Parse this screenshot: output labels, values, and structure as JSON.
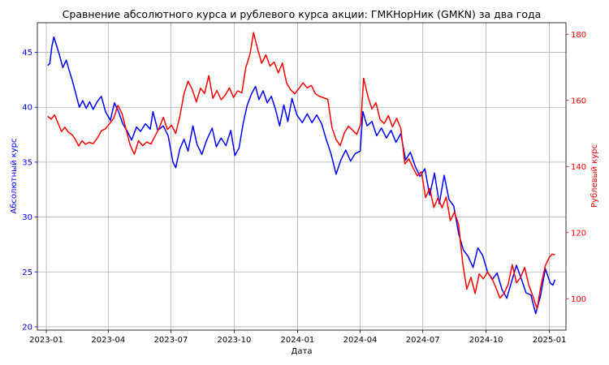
{
  "chart_data": {
    "type": "line",
    "title": "Сравнение абсолютного курса и рублевого курса акции: ГМКНорНик (GMKN) за два года",
    "xlabel": "Дата",
    "ylabel_left": "Абсолютный курс",
    "ylabel_right": "Рублевый курс",
    "x_ticks": [
      "2023-01",
      "2023-04",
      "2023-07",
      "2023-10",
      "2024-01",
      "2024-04",
      "2024-07",
      "2024-10",
      "2025-01"
    ],
    "x_range": [
      "2022-12-19",
      "2025-01-25"
    ],
    "y_left": {
      "range": [
        19.7,
        47.7
      ],
      "ticks": [
        20,
        25,
        30,
        35,
        40,
        45
      ]
    },
    "y_right": {
      "range": [
        90.5,
        183.5
      ],
      "ticks": [
        100,
        120,
        140,
        160,
        180
      ]
    },
    "grid": true,
    "colors": {
      "left_series": "#0000ff",
      "right_series": "#ff0000"
    },
    "series": [
      {
        "axis": "left",
        "color": "#0000ff",
        "points": [
          [
            "2023-01-03",
            43.8
          ],
          [
            "2023-01-06",
            44.0
          ],
          [
            "2023-01-09",
            45.5
          ],
          [
            "2023-01-12",
            46.4
          ],
          [
            "2023-01-16",
            45.6
          ],
          [
            "2023-01-20",
            44.8
          ],
          [
            "2023-01-25",
            43.6
          ],
          [
            "2023-01-30",
            44.3
          ],
          [
            "2023-02-03",
            43.4
          ],
          [
            "2023-02-08",
            42.4
          ],
          [
            "2023-02-13",
            41.2
          ],
          [
            "2023-02-18",
            40.0
          ],
          [
            "2023-02-23",
            40.6
          ],
          [
            "2023-02-28",
            39.9
          ],
          [
            "2023-03-05",
            40.5
          ],
          [
            "2023-03-10",
            39.8
          ],
          [
            "2023-03-16",
            40.5
          ],
          [
            "2023-03-22",
            41.0
          ],
          [
            "2023-03-28",
            39.6
          ],
          [
            "2023-04-04",
            38.8
          ],
          [
            "2023-04-10",
            40.4
          ],
          [
            "2023-04-16",
            39.6
          ],
          [
            "2023-04-22",
            38.5
          ],
          [
            "2023-04-28",
            37.9
          ],
          [
            "2023-05-05",
            37.0
          ],
          [
            "2023-05-12",
            38.2
          ],
          [
            "2023-05-18",
            37.8
          ],
          [
            "2023-05-25",
            38.5
          ],
          [
            "2023-06-01",
            38.0
          ],
          [
            "2023-06-05",
            39.6
          ],
          [
            "2023-06-12",
            37.9
          ],
          [
            "2023-06-20",
            38.3
          ],
          [
            "2023-06-27",
            37.4
          ],
          [
            "2023-07-04",
            35.0
          ],
          [
            "2023-07-08",
            34.5
          ],
          [
            "2023-07-14",
            36.2
          ],
          [
            "2023-07-20",
            37.1
          ],
          [
            "2023-07-26",
            36.0
          ],
          [
            "2023-08-02",
            38.3
          ],
          [
            "2023-08-08",
            36.6
          ],
          [
            "2023-08-15",
            35.7
          ],
          [
            "2023-08-22",
            37.0
          ],
          [
            "2023-08-30",
            38.1
          ],
          [
            "2023-09-05",
            36.4
          ],
          [
            "2023-09-12",
            37.2
          ],
          [
            "2023-09-19",
            36.5
          ],
          [
            "2023-09-26",
            37.9
          ],
          [
            "2023-10-02",
            35.6
          ],
          [
            "2023-10-08",
            36.3
          ],
          [
            "2023-10-14",
            38.5
          ],
          [
            "2023-10-20",
            40.2
          ],
          [
            "2023-10-26",
            41.2
          ],
          [
            "2023-11-01",
            41.9
          ],
          [
            "2023-11-06",
            40.7
          ],
          [
            "2023-11-12",
            41.5
          ],
          [
            "2023-11-18",
            40.4
          ],
          [
            "2023-11-24",
            41.0
          ],
          [
            "2023-11-30",
            39.8
          ],
          [
            "2023-12-06",
            38.3
          ],
          [
            "2023-12-12",
            40.2
          ],
          [
            "2023-12-18",
            38.7
          ],
          [
            "2023-12-24",
            40.8
          ],
          [
            "2023-12-31",
            39.3
          ],
          [
            "2024-01-08",
            38.6
          ],
          [
            "2024-01-15",
            39.4
          ],
          [
            "2024-01-22",
            38.6
          ],
          [
            "2024-01-29",
            39.3
          ],
          [
            "2024-02-05",
            38.5
          ],
          [
            "2024-02-12",
            37.0
          ],
          [
            "2024-02-19",
            35.7
          ],
          [
            "2024-02-26",
            33.9
          ],
          [
            "2024-03-04",
            35.2
          ],
          [
            "2024-03-11",
            36.1
          ],
          [
            "2024-03-18",
            35.1
          ],
          [
            "2024-03-25",
            35.8
          ],
          [
            "2024-04-01",
            36.0
          ],
          [
            "2024-04-05",
            39.6
          ],
          [
            "2024-04-11",
            38.3
          ],
          [
            "2024-04-18",
            38.7
          ],
          [
            "2024-04-25",
            37.4
          ],
          [
            "2024-05-02",
            38.1
          ],
          [
            "2024-05-09",
            37.2
          ],
          [
            "2024-05-16",
            37.9
          ],
          [
            "2024-05-23",
            36.8
          ],
          [
            "2024-05-30",
            37.6
          ],
          [
            "2024-06-06",
            35.2
          ],
          [
            "2024-06-13",
            35.9
          ],
          [
            "2024-06-20",
            34.6
          ],
          [
            "2024-06-27",
            33.7
          ],
          [
            "2024-07-04",
            34.4
          ],
          [
            "2024-07-11",
            32.0
          ],
          [
            "2024-07-18",
            34.0
          ],
          [
            "2024-07-25",
            31.2
          ],
          [
            "2024-08-01",
            33.8
          ],
          [
            "2024-08-08",
            31.6
          ],
          [
            "2024-08-15",
            31.0
          ],
          [
            "2024-08-22",
            28.5
          ],
          [
            "2024-08-29",
            27.0
          ],
          [
            "2024-09-05",
            26.4
          ],
          [
            "2024-09-12",
            25.4
          ],
          [
            "2024-09-19",
            27.2
          ],
          [
            "2024-09-26",
            26.5
          ],
          [
            "2024-10-03",
            25.0
          ],
          [
            "2024-10-10",
            24.3
          ],
          [
            "2024-10-17",
            24.9
          ],
          [
            "2024-10-24",
            23.4
          ],
          [
            "2024-10-31",
            22.6
          ],
          [
            "2024-11-07",
            24.1
          ],
          [
            "2024-11-14",
            25.6
          ],
          [
            "2024-11-21",
            24.4
          ],
          [
            "2024-11-28",
            23.1
          ],
          [
            "2024-12-05",
            22.9
          ],
          [
            "2024-12-12",
            21.2
          ],
          [
            "2024-12-19",
            22.8
          ],
          [
            "2024-12-26",
            25.3
          ],
          [
            "2025-01-02",
            24.0
          ],
          [
            "2025-01-06",
            23.8
          ],
          [
            "2025-01-09",
            24.3
          ]
        ]
      },
      {
        "axis": "right",
        "color": "#ff0000",
        "points": [
          [
            "2023-01-03",
            155.2
          ],
          [
            "2023-01-08",
            154.3
          ],
          [
            "2023-01-13",
            155.6
          ],
          [
            "2023-01-18",
            153.2
          ],
          [
            "2023-01-23",
            150.6
          ],
          [
            "2023-01-28",
            151.9
          ],
          [
            "2023-02-02",
            150.4
          ],
          [
            "2023-02-07",
            149.7
          ],
          [
            "2023-02-12",
            148.3
          ],
          [
            "2023-02-17",
            146.2
          ],
          [
            "2023-02-22",
            147.8
          ],
          [
            "2023-02-27",
            146.7
          ],
          [
            "2023-03-04",
            147.3
          ],
          [
            "2023-03-10",
            146.9
          ],
          [
            "2023-03-16",
            148.5
          ],
          [
            "2023-03-22",
            150.8
          ],
          [
            "2023-03-28",
            151.4
          ],
          [
            "2023-04-03",
            153.0
          ],
          [
            "2023-04-09",
            154.6
          ],
          [
            "2023-04-15",
            158.5
          ],
          [
            "2023-04-21",
            156.0
          ],
          [
            "2023-04-27",
            151.2
          ],
          [
            "2023-05-03",
            146.4
          ],
          [
            "2023-05-09",
            143.7
          ],
          [
            "2023-05-15",
            147.8
          ],
          [
            "2023-05-21",
            146.3
          ],
          [
            "2023-05-27",
            147.4
          ],
          [
            "2023-06-02",
            146.8
          ],
          [
            "2023-06-08",
            149.2
          ],
          [
            "2023-06-14",
            151.6
          ],
          [
            "2023-06-20",
            154.9
          ],
          [
            "2023-06-26",
            151.2
          ],
          [
            "2023-07-02",
            152.5
          ],
          [
            "2023-07-08",
            150.0
          ],
          [
            "2023-07-14",
            155.2
          ],
          [
            "2023-07-20",
            162.0
          ],
          [
            "2023-07-26",
            165.8
          ],
          [
            "2023-08-01",
            163.4
          ],
          [
            "2023-08-07",
            159.5
          ],
          [
            "2023-08-13",
            163.7
          ],
          [
            "2023-08-19",
            162.1
          ],
          [
            "2023-08-25",
            167.5
          ],
          [
            "2023-08-31",
            160.6
          ],
          [
            "2023-09-06",
            163.0
          ],
          [
            "2023-09-12",
            160.2
          ],
          [
            "2023-09-18",
            161.6
          ],
          [
            "2023-09-24",
            163.8
          ],
          [
            "2023-09-30",
            160.9
          ],
          [
            "2023-10-06",
            162.9
          ],
          [
            "2023-10-12",
            162.3
          ],
          [
            "2023-10-18",
            170.0
          ],
          [
            "2023-10-24",
            174.0
          ],
          [
            "2023-10-29",
            180.5
          ],
          [
            "2023-11-04",
            175.5
          ],
          [
            "2023-11-10",
            171.2
          ],
          [
            "2023-11-16",
            173.8
          ],
          [
            "2023-11-22",
            170.4
          ],
          [
            "2023-11-28",
            171.6
          ],
          [
            "2023-12-04",
            168.3
          ],
          [
            "2023-12-10",
            171.3
          ],
          [
            "2023-12-16",
            165.3
          ],
          [
            "2023-12-22",
            163.2
          ],
          [
            "2023-12-28",
            162.0
          ],
          [
            "2024-01-03",
            163.6
          ],
          [
            "2024-01-09",
            165.3
          ],
          [
            "2024-01-15",
            163.8
          ],
          [
            "2024-01-21",
            164.5
          ],
          [
            "2024-01-27",
            162.0
          ],
          [
            "2024-02-02",
            161.2
          ],
          [
            "2024-02-08",
            160.8
          ],
          [
            "2024-02-14",
            160.3
          ],
          [
            "2024-02-20",
            151.8
          ],
          [
            "2024-02-26",
            148.2
          ],
          [
            "2024-03-03",
            146.3
          ],
          [
            "2024-03-09",
            150.2
          ],
          [
            "2024-03-15",
            152.2
          ],
          [
            "2024-03-21",
            151.0
          ],
          [
            "2024-03-27",
            149.7
          ],
          [
            "2024-04-02",
            152.9
          ],
          [
            "2024-04-06",
            166.7
          ],
          [
            "2024-04-12",
            161.4
          ],
          [
            "2024-04-18",
            157.4
          ],
          [
            "2024-04-24",
            159.3
          ],
          [
            "2024-04-30",
            154.2
          ],
          [
            "2024-05-06",
            153.0
          ],
          [
            "2024-05-12",
            155.4
          ],
          [
            "2024-05-18",
            152.0
          ],
          [
            "2024-05-24",
            154.6
          ],
          [
            "2024-05-30",
            151.5
          ],
          [
            "2024-06-05",
            140.8
          ],
          [
            "2024-06-11",
            142.3
          ],
          [
            "2024-06-17",
            139.5
          ],
          [
            "2024-06-23",
            137.2
          ],
          [
            "2024-06-29",
            138.4
          ],
          [
            "2024-07-05",
            130.6
          ],
          [
            "2024-07-11",
            133.3
          ],
          [
            "2024-07-17",
            127.6
          ],
          [
            "2024-07-23",
            130.5
          ],
          [
            "2024-07-29",
            127.5
          ],
          [
            "2024-08-04",
            130.8
          ],
          [
            "2024-08-10",
            123.6
          ],
          [
            "2024-08-16",
            126.2
          ],
          [
            "2024-08-22",
            122.4
          ],
          [
            "2024-08-28",
            110.6
          ],
          [
            "2024-09-03",
            102.9
          ],
          [
            "2024-09-09",
            106.5
          ],
          [
            "2024-09-15",
            101.6
          ],
          [
            "2024-09-21",
            107.5
          ],
          [
            "2024-09-27",
            106.0
          ],
          [
            "2024-10-03",
            108.1
          ],
          [
            "2024-10-09",
            106.3
          ],
          [
            "2024-10-15",
            103.5
          ],
          [
            "2024-10-21",
            100.2
          ],
          [
            "2024-10-27",
            101.6
          ],
          [
            "2024-11-02",
            104.4
          ],
          [
            "2024-11-08",
            110.3
          ],
          [
            "2024-11-14",
            104.8
          ],
          [
            "2024-11-20",
            106.4
          ],
          [
            "2024-11-26",
            109.5
          ],
          [
            "2024-12-02",
            104.2
          ],
          [
            "2024-12-08",
            100.7
          ],
          [
            "2024-12-14",
            97.0
          ],
          [
            "2024-12-20",
            104.4
          ],
          [
            "2024-12-26",
            110.0
          ],
          [
            "2025-01-01",
            112.6
          ],
          [
            "2025-01-05",
            113.5
          ],
          [
            "2025-01-09",
            113.3
          ]
        ]
      }
    ]
  }
}
